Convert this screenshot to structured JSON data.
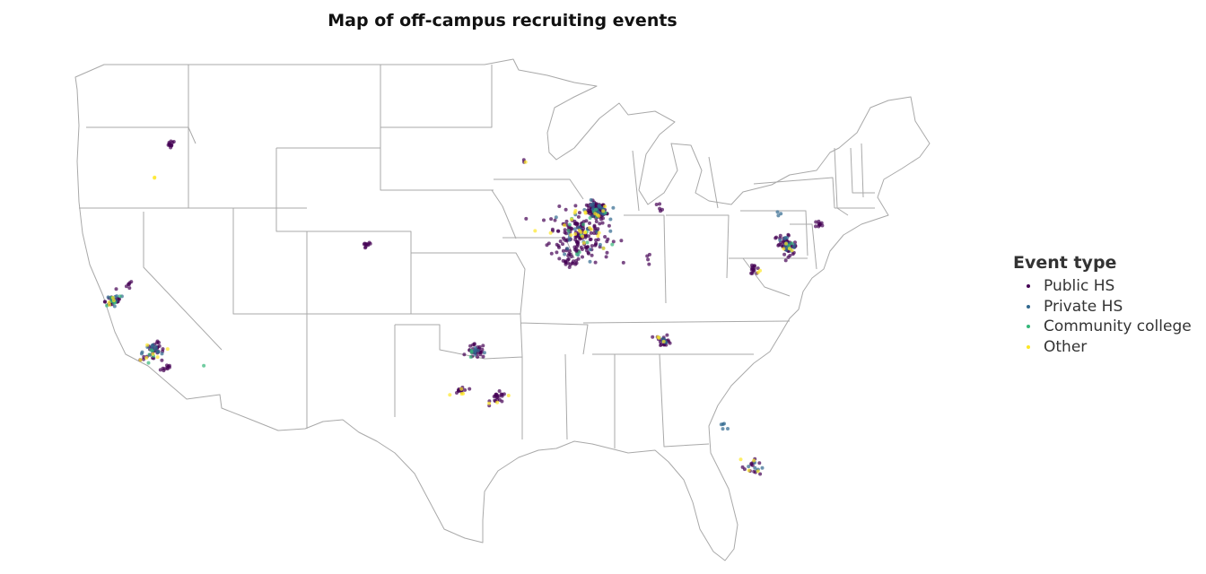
{
  "title": "Map of off-campus recruiting events",
  "legend": {
    "title": "Event type",
    "items": [
      {
        "label": "Public HS",
        "color": "#440154"
      },
      {
        "label": "Private HS",
        "color": "#31688e"
      },
      {
        "label": "Community college",
        "color": "#35b779"
      },
      {
        "label": "Other",
        "color": "#fde725"
      }
    ]
  },
  "map": {
    "region": "Contiguous United States",
    "boundary_color": "#a9a9a9"
  },
  "chart_data": {
    "type": "scatter",
    "projection": "Albers equal-area conic (approx.)",
    "x_label": "",
    "y_label": "",
    "grid": false,
    "legend_position": "right",
    "series": [
      {
        "name": "Public HS",
        "clusters": [
          {
            "lon": -87.9,
            "lat": 41.9,
            "n": 90,
            "spread": 0.35
          },
          {
            "lon": -89.4,
            "lat": 40.3,
            "n": 150,
            "spread": 1.1
          },
          {
            "lon": -90.1,
            "lat": 38.7,
            "n": 20,
            "spread": 0.3
          },
          {
            "lon": -74.1,
            "lat": 40.7,
            "n": 45,
            "spread": 0.4
          },
          {
            "lon": -118.3,
            "lat": 34.0,
            "n": 30,
            "spread": 0.35
          },
          {
            "lon": -117.1,
            "lat": 32.8,
            "n": 10,
            "spread": 0.2
          },
          {
            "lon": -122.3,
            "lat": 37.7,
            "n": 25,
            "spread": 0.3
          },
          {
            "lon": -121.5,
            "lat": 38.6,
            "n": 6,
            "spread": 0.2
          },
          {
            "lon": -122.3,
            "lat": 47.6,
            "n": 12,
            "spread": 0.15
          },
          {
            "lon": -104.9,
            "lat": 39.7,
            "n": 10,
            "spread": 0.2
          },
          {
            "lon": -96.8,
            "lat": 32.8,
            "n": 30,
            "spread": 0.3
          },
          {
            "lon": -95.4,
            "lat": 29.8,
            "n": 20,
            "spread": 0.25
          },
          {
            "lon": -97.7,
            "lat": 30.3,
            "n": 12,
            "spread": 0.2
          },
          {
            "lon": -84.4,
            "lat": 33.8,
            "n": 20,
            "spread": 0.25
          },
          {
            "lon": -80.2,
            "lat": 26.0,
            "n": 12,
            "spread": 0.3
          },
          {
            "lon": -77.0,
            "lat": 38.9,
            "n": 14,
            "spread": 0.2
          },
          {
            "lon": -71.1,
            "lat": 42.4,
            "n": 10,
            "spread": 0.2
          },
          {
            "lon": -83.1,
            "lat": 42.4,
            "n": 5,
            "spread": 0.15
          },
          {
            "lon": -84.5,
            "lat": 39.1,
            "n": 4,
            "spread": 0.15
          },
          {
            "lon": -93.3,
            "lat": 45.0,
            "n": 2,
            "spread": 0.1
          }
        ]
      },
      {
        "name": "Private HS",
        "clusters": [
          {
            "lon": -87.9,
            "lat": 41.9,
            "n": 25,
            "spread": 0.4
          },
          {
            "lon": -89.4,
            "lat": 40.3,
            "n": 20,
            "spread": 1.0
          },
          {
            "lon": -74.1,
            "lat": 40.7,
            "n": 15,
            "spread": 0.4
          },
          {
            "lon": -118.3,
            "lat": 34.0,
            "n": 12,
            "spread": 0.35
          },
          {
            "lon": -122.3,
            "lat": 37.7,
            "n": 10,
            "spread": 0.3
          },
          {
            "lon": -96.8,
            "lat": 32.8,
            "n": 8,
            "spread": 0.3
          },
          {
            "lon": -84.4,
            "lat": 33.8,
            "n": 6,
            "spread": 0.25
          },
          {
            "lon": -80.2,
            "lat": 26.0,
            "n": 6,
            "spread": 0.3
          },
          {
            "lon": -81.4,
            "lat": 28.5,
            "n": 5,
            "spread": 0.25
          },
          {
            "lon": -73.8,
            "lat": 42.7,
            "n": 3,
            "spread": 0.15
          }
        ]
      },
      {
        "name": "Community college",
        "clusters": [
          {
            "lon": -89.4,
            "lat": 40.3,
            "n": 10,
            "spread": 1.1
          },
          {
            "lon": -87.9,
            "lat": 41.9,
            "n": 5,
            "spread": 0.4
          },
          {
            "lon": -122.3,
            "lat": 37.7,
            "n": 6,
            "spread": 0.3
          },
          {
            "lon": -118.3,
            "lat": 34.0,
            "n": 5,
            "spread": 0.35
          },
          {
            "lon": -114.6,
            "lat": 32.7,
            "n": 1,
            "spread": 0.05
          },
          {
            "lon": -74.1,
            "lat": 40.7,
            "n": 3,
            "spread": 0.3
          },
          {
            "lon": -96.8,
            "lat": 32.8,
            "n": 3,
            "spread": 0.3
          }
        ]
      },
      {
        "name": "Other",
        "clusters": [
          {
            "lon": -89.4,
            "lat": 40.3,
            "n": 20,
            "spread": 1.1
          },
          {
            "lon": -87.9,
            "lat": 41.9,
            "n": 6,
            "spread": 0.4
          },
          {
            "lon": -122.7,
            "lat": 45.5,
            "n": 2,
            "spread": 0.1
          },
          {
            "lon": -122.3,
            "lat": 37.7,
            "n": 4,
            "spread": 0.3
          },
          {
            "lon": -118.3,
            "lat": 34.0,
            "n": 6,
            "spread": 0.4
          },
          {
            "lon": -97.7,
            "lat": 30.3,
            "n": 4,
            "spread": 0.3
          },
          {
            "lon": -95.4,
            "lat": 29.8,
            "n": 3,
            "spread": 0.3
          },
          {
            "lon": -84.4,
            "lat": 33.8,
            "n": 3,
            "spread": 0.25
          },
          {
            "lon": -80.1,
            "lat": 26.2,
            "n": 4,
            "spread": 0.3
          },
          {
            "lon": -74.1,
            "lat": 40.7,
            "n": 4,
            "spread": 0.3
          },
          {
            "lon": -77.0,
            "lat": 38.9,
            "n": 2,
            "spread": 0.2
          },
          {
            "lon": -93.1,
            "lat": 44.9,
            "n": 1,
            "spread": 0.05
          }
        ]
      }
    ]
  }
}
